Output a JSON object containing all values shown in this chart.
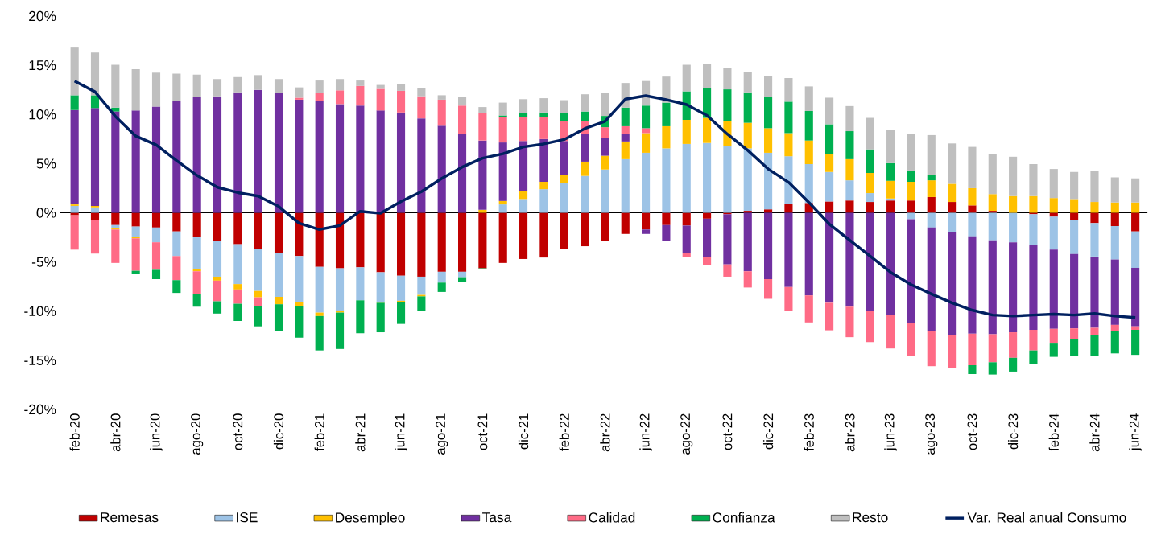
{
  "chart_data": {
    "type": "bar",
    "stacked": true,
    "categories": [
      "feb-20",
      null,
      "abr-20",
      null,
      "jun-20",
      null,
      "ago-20",
      null,
      "oct-20",
      null,
      "dic-20",
      null,
      "feb-21",
      null,
      "abr-21",
      null,
      "jun-21",
      null,
      "ago-21",
      null,
      "oct-21",
      null,
      "dic-21",
      null,
      "feb-22",
      null,
      "abr-22",
      null,
      "jun-22",
      null,
      "ago-22",
      null,
      "oct-22",
      null,
      "dic-22",
      null,
      "feb-23",
      null,
      "abr-23",
      null,
      "jun-23",
      null,
      "ago-23",
      null,
      "oct-23",
      null,
      "dic-23",
      null,
      "feb-24",
      null,
      "abr-24",
      null,
      "jun-24"
    ],
    "ylim": [
      -20,
      20
    ],
    "yticks": [
      {
        "value": -20,
        "label": "-20%"
      },
      {
        "value": -15,
        "label": "-15%"
      },
      {
        "value": -10,
        "label": "-10%"
      },
      {
        "value": -5,
        "label": "-5%"
      },
      {
        "value": 0,
        "label": "0%"
      },
      {
        "value": 5,
        "label": "5%"
      },
      {
        "value": 10,
        "label": "10%"
      },
      {
        "value": 15,
        "label": "15%"
      },
      {
        "value": 20,
        "label": "20%"
      }
    ],
    "legend": "bottom",
    "series": [
      {
        "name": "Remesas",
        "color": "#c00000",
        "values": [
          -0.25,
          -0.75,
          -1.25,
          -1.4,
          -1.5,
          -1.9,
          -2.5,
          -2.85,
          -3.2,
          -3.7,
          -4.1,
          -4.4,
          -5.5,
          -5.65,
          -5.55,
          -6.05,
          -6.4,
          -6.5,
          -6.0,
          -6.0,
          -5.65,
          -5.1,
          -4.7,
          -4.55,
          -3.7,
          -3.4,
          -2.9,
          -2.15,
          -1.7,
          -1.25,
          -1.3,
          -0.6,
          -0.15,
          0.2,
          0.35,
          0.9,
          1.0,
          1.15,
          1.25,
          1.1,
          1.25,
          1.25,
          1.6,
          1.1,
          0.75,
          0.2,
          null,
          -0.15,
          -0.4,
          -0.7,
          -1.05,
          -1.35,
          -1.9
        ]
      },
      {
        "name": "ISE",
        "color": "#9dc3e6",
        "values": [
          0.7,
          0.55,
          -0.35,
          -1.05,
          -1.5,
          -2.5,
          -3.2,
          -3.65,
          -4.05,
          -4.25,
          -4.45,
          -4.65,
          -4.65,
          -4.35,
          -3.35,
          -3.0,
          -2.55,
          -1.85,
          -1.1,
          -0.55,
          null,
          0.85,
          1.4,
          2.4,
          3.0,
          3.75,
          4.4,
          5.45,
          6.1,
          6.55,
          7.0,
          7.1,
          6.8,
          6.35,
          5.75,
          4.85,
          3.95,
          3.0,
          2.05,
          0.9,
          0.2,
          -0.65,
          -1.5,
          -2.0,
          -2.4,
          -2.8,
          -3.0,
          -3.15,
          -3.35,
          -3.5,
          -3.4,
          -3.4,
          -3.7
        ]
      },
      {
        "name": "Desempleo",
        "color": "#ffc000",
        "values": [
          0.15,
          0.15,
          -0.1,
          -0.15,
          null,
          null,
          -0.25,
          -0.4,
          -0.55,
          -0.65,
          -0.75,
          -0.4,
          -0.35,
          -0.15,
          null,
          -0.1,
          -0.1,
          -0.15,
          null,
          null,
          0.3,
          0.35,
          0.85,
          0.75,
          0.85,
          1.45,
          1.4,
          1.8,
          2.0,
          2.25,
          2.45,
          2.55,
          2.55,
          2.6,
          2.5,
          2.35,
          2.4,
          1.85,
          2.15,
          2.05,
          1.8,
          1.9,
          1.7,
          1.85,
          1.75,
          1.7,
          1.7,
          1.7,
          1.5,
          1.4,
          1.1,
          1.05,
          1.05
        ]
      },
      {
        "name": "Tasa",
        "color": "#7030a0",
        "values": [
          9.6,
          9.95,
          10.3,
          10.4,
          10.8,
          11.35,
          11.75,
          11.85,
          12.25,
          12.5,
          12.15,
          11.5,
          11.4,
          11.05,
          10.9,
          10.4,
          10.2,
          9.6,
          8.85,
          8.0,
          7.05,
          5.95,
          5.05,
          4.35,
          3.45,
          2.8,
          1.8,
          0.8,
          -0.45,
          -1.6,
          -2.75,
          -3.9,
          -5.1,
          -5.95,
          -6.75,
          -7.55,
          -8.4,
          -9.15,
          -9.55,
          -10.0,
          -10.4,
          -10.55,
          -10.55,
          -10.45,
          -9.9,
          -9.55,
          -9.15,
          -8.6,
          -8.05,
          -7.55,
          -7.25,
          -6.65,
          -5.95
        ]
      },
      {
        "name": "Calidad",
        "color": "#ff6b86",
        "values": [
          -3.5,
          -3.4,
          -3.4,
          -3.3,
          -2.8,
          -2.45,
          -2.3,
          -2.1,
          -1.45,
          -0.85,
          null,
          0.2,
          0.75,
          1.4,
          2.0,
          2.2,
          2.2,
          2.25,
          2.65,
          2.9,
          2.8,
          2.6,
          2.45,
          2.25,
          2.05,
          1.35,
          1.1,
          0.75,
          0.5,
          null,
          -0.45,
          -0.85,
          -1.25,
          -1.65,
          -2.0,
          -2.4,
          -2.75,
          -2.8,
          -3.1,
          -3.15,
          -3.4,
          -3.4,
          -3.55,
          -3.35,
          -3.2,
          -2.85,
          -2.6,
          -2.1,
          -1.5,
          -1.1,
          -0.75,
          -0.6,
          -0.35
        ]
      },
      {
        "name": "Confianza",
        "color": "#00b050",
        "values": [
          1.5,
          1.3,
          0.4,
          -0.3,
          -0.95,
          -1.3,
          -1.3,
          -1.25,
          -1.75,
          -2.1,
          -2.75,
          -3.25,
          -3.5,
          -3.7,
          -3.35,
          -3.0,
          -2.25,
          -1.5,
          -0.95,
          -0.45,
          -0.1,
          0.15,
          0.35,
          0.45,
          0.75,
          0.95,
          1.15,
          1.9,
          2.3,
          2.4,
          2.9,
          3.0,
          3.2,
          3.1,
          3.2,
          3.2,
          3.0,
          3.0,
          2.85,
          2.4,
          1.8,
          1.15,
          0.55,
          null,
          -0.9,
          -1.25,
          -1.4,
          -1.35,
          -1.35,
          -1.7,
          -2.1,
          -2.3,
          -2.55
        ]
      },
      {
        "name": "Resto",
        "color": "#bfbfbf",
        "values": [
          4.85,
          4.35,
          4.35,
          4.2,
          3.45,
          2.8,
          2.3,
          1.75,
          1.55,
          1.5,
          1.45,
          1.05,
          1.3,
          1.15,
          0.55,
          0.4,
          0.65,
          0.8,
          0.45,
          0.85,
          0.6,
          1.3,
          1.45,
          1.45,
          1.35,
          1.75,
          2.3,
          2.5,
          2.5,
          2.65,
          2.7,
          2.45,
          2.2,
          2.1,
          2.1,
          2.4,
          2.5,
          2.7,
          2.55,
          3.2,
          3.4,
          3.75,
          4.05,
          4.1,
          4.2,
          4.1,
          4.0,
          3.25,
          2.95,
          2.75,
          3.15,
          2.55,
          2.45
        ]
      },
      {
        "name": "Var. Real anual Consumo",
        "type": "line",
        "color": "#002060",
        "values": [
          13.4,
          12.3,
          9.8,
          7.8,
          6.9,
          5.3,
          3.8,
          2.6,
          2.05,
          1.7,
          0.65,
          -1.05,
          -1.7,
          -1.3,
          0.15,
          -0.05,
          1.15,
          2.15,
          3.5,
          4.65,
          5.55,
          6.0,
          6.7,
          7.0,
          7.45,
          8.55,
          9.3,
          11.55,
          11.9,
          11.5,
          11.0,
          9.9,
          8.0,
          6.35,
          4.45,
          3.1,
          1.05,
          -1.15,
          -2.8,
          -4.4,
          -6.05,
          -7.3,
          -8.25,
          -9.15,
          -9.9,
          -10.4,
          -10.5,
          -10.4,
          -10.3,
          -10.4,
          -10.25,
          -10.5,
          -10.65
        ]
      }
    ]
  }
}
